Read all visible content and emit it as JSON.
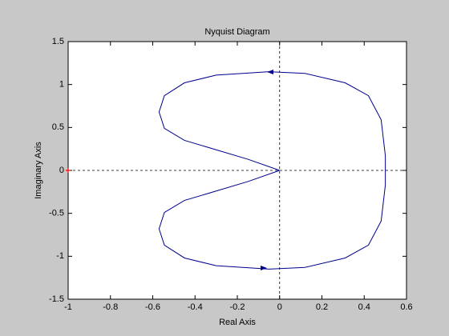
{
  "chart_data": {
    "type": "line",
    "title": "Nyquist Diagram",
    "x_label": "Real Axis",
    "y_label": "Imaginary Axis",
    "series": [
      {
        "color": "#00008b",
        "x": [
          0,
          -0.15,
          -0.3,
          -0.45,
          -0.545,
          -0.57,
          -0.545,
          -0.45,
          -0.3,
          -0.05,
          0.12,
          0.31,
          0.42,
          0.48,
          0.5,
          0.5,
          0.5,
          0.48,
          0.42,
          0.31,
          0.12,
          -0.05,
          -0.3,
          -0.45,
          -0.545,
          -0.57,
          -0.545,
          -0.45,
          -0.3,
          -0.15,
          0
        ],
        "values": [
          0,
          0.13,
          0.24,
          0.35,
          0.49,
          0.68,
          0.87,
          1.02,
          1.11,
          1.15,
          1.13,
          1.02,
          0.87,
          0.59,
          0.17,
          0,
          -0.17,
          -0.59,
          -0.87,
          -1.02,
          -1.13,
          -1.15,
          -1.11,
          -1.02,
          -0.87,
          -0.68,
          -0.49,
          -0.35,
          -0.24,
          -0.13,
          0
        ]
      }
    ],
    "critical_point": {
      "x": -1,
      "y": 0,
      "color": "#ff0000"
    },
    "xlim": [
      -1,
      0.6
    ],
    "xticks": [
      -1,
      -0.8,
      -0.6,
      -0.4,
      -0.2,
      0,
      0.2,
      0.4,
      0.6
    ],
    "ylim": [
      -1.5,
      1.5
    ],
    "yticks": [
      -1.5,
      -1,
      -0.5,
      0,
      0.5,
      1,
      1.5
    ],
    "zero_lines": true
  }
}
